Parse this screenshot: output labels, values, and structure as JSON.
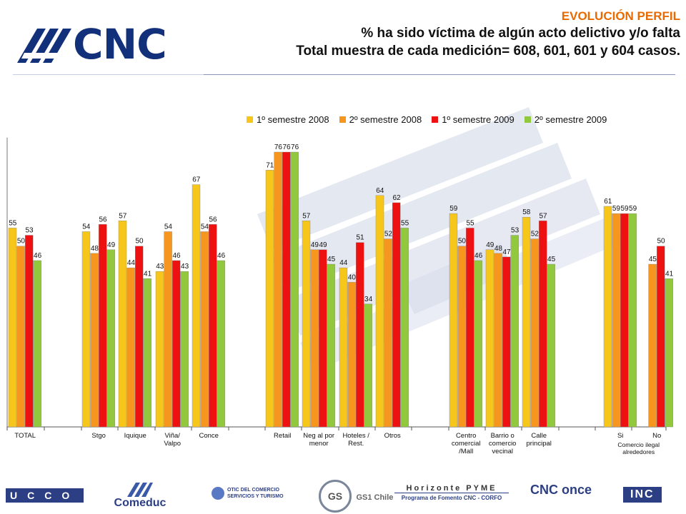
{
  "header": {
    "line1": "EVOLUCIÓN PERFIL",
    "line2": "% ha sido víctima de algún acto delictivo y/o falta",
    "line3": "Total muestra de cada medición= 608, 601, 601 y 604  casos."
  },
  "logo": {
    "text": "CNC"
  },
  "chart_data": {
    "type": "bar",
    "categories": [
      "TOTAL",
      "Stgo",
      "Iquique",
      "Viña/ Valpo",
      "Conce",
      "Retail",
      "Neg al por menor",
      "Hoteles / Rest.",
      "Otros",
      "Centro comercial /Mall",
      "Barrio o comercio vecinal",
      "Calle principal",
      "Si",
      "No"
    ],
    "category_lines": [
      [
        "TOTAL"
      ],
      [
        "Stgo"
      ],
      [
        "Iquique"
      ],
      [
        "Viña/",
        "Valpo"
      ],
      [
        "Conce"
      ],
      [
        "Retail"
      ],
      [
        "Neg al por",
        "menor"
      ],
      [
        "Hoteles /",
        "Rest."
      ],
      [
        "Otros"
      ],
      [
        "Centro",
        "comercial",
        "/Mall"
      ],
      [
        "Barrio o",
        "comercio",
        "vecinal"
      ],
      [
        "Calle",
        "principal"
      ],
      [
        "Si"
      ],
      [
        "No"
      ]
    ],
    "group_label": {
      "text": "Comercio ilegal alrededores",
      "lines": [
        "Comercio ilegal",
        "alrededores"
      ]
    },
    "series": [
      {
        "name": "1º semestre 2008",
        "color": "#f7c61a",
        "values": [
          55,
          54,
          57,
          43,
          67,
          71,
          57,
          44,
          64,
          59,
          49,
          58,
          61,
          null
        ]
      },
      {
        "name": "2º semestre 2008",
        "color": "#f7961e",
        "values": [
          50,
          48,
          44,
          54,
          54,
          76,
          49,
          40,
          52,
          50,
          48,
          52,
          59,
          45
        ]
      },
      {
        "name": "1º semestre 2009",
        "color": "#ee1111",
        "values": [
          53,
          56,
          50,
          46,
          56,
          76,
          49,
          51,
          62,
          55,
          47,
          57,
          59,
          50
        ]
      },
      {
        "name": "2º semestre 2009",
        "color": "#92c83e",
        "values": [
          46,
          49,
          41,
          43,
          46,
          76,
          45,
          34,
          55,
          46,
          53,
          45,
          59,
          41
        ]
      }
    ],
    "ylim": [
      0,
      80
    ],
    "grid": false,
    "legend": "top-right"
  },
  "footer": {
    "logos": [
      "UCCO",
      "Comeduc",
      "OTIC DEL COMERCIO SERVICIOS Y TURISMO",
      "GS1 Chile",
      "Horizonte PYME",
      "CNC once",
      "INC"
    ],
    "horizonte_sub": "Programa de Fomento CNC - CORFO"
  }
}
